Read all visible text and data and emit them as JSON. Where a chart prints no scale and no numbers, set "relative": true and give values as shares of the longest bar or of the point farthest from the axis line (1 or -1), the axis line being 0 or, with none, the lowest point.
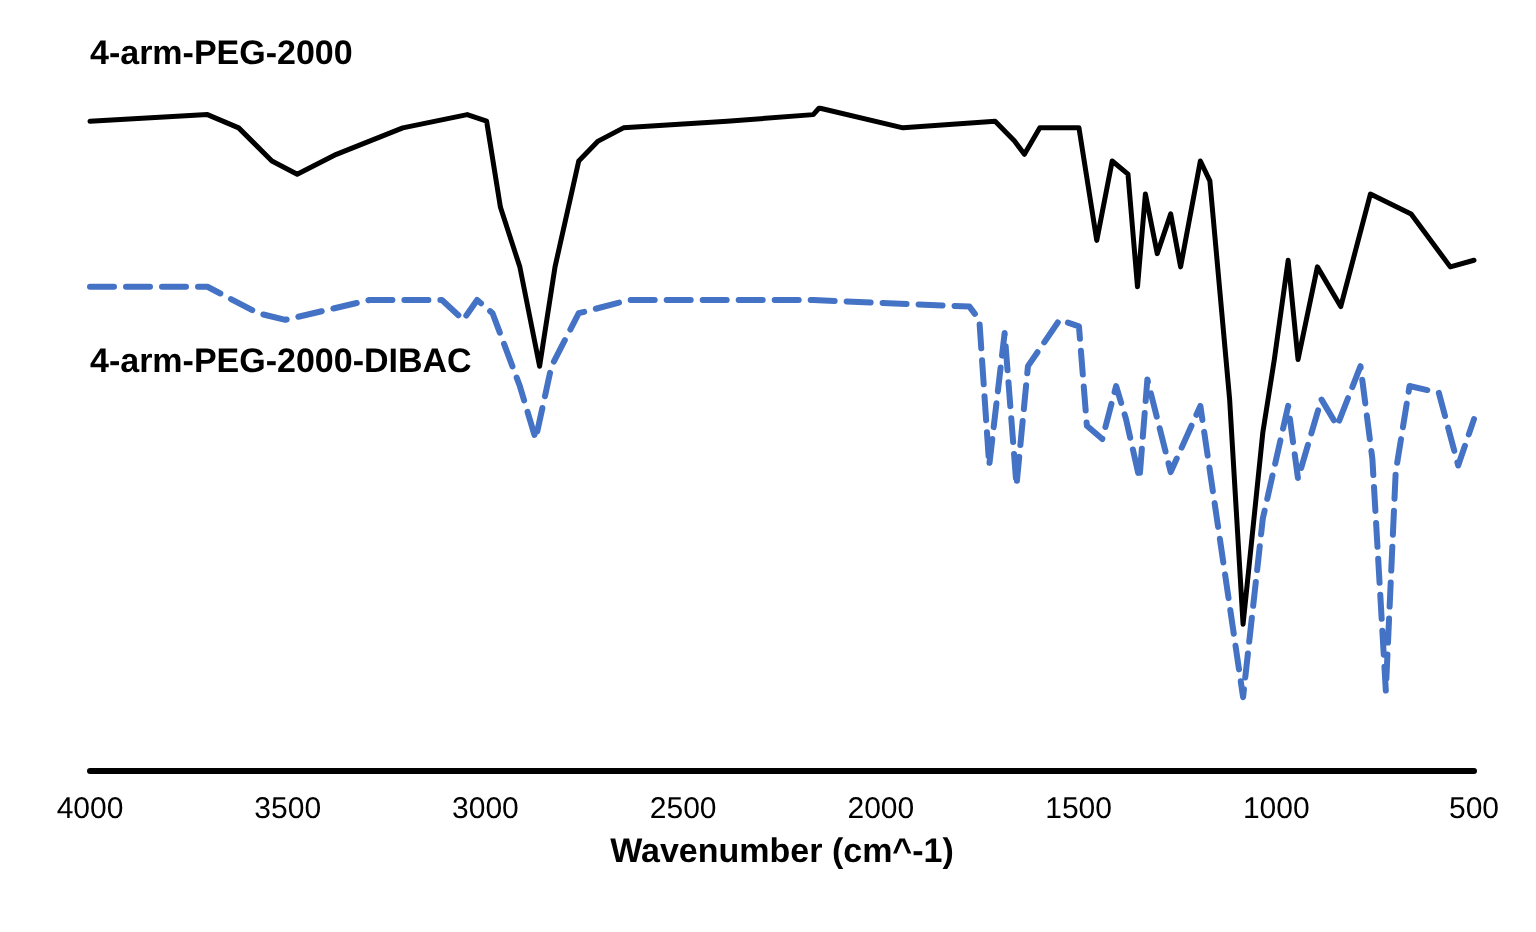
{
  "chart_data": {
    "type": "line",
    "relative": true,
    "xlabel": "Wavenumber (cm^-1)",
    "xlim": [
      4000,
      500
    ],
    "xticks": [
      4000,
      3500,
      3000,
      2500,
      2000,
      1500,
      1000,
      500
    ],
    "grid": false,
    "legend": false,
    "tick_labels": "x",
    "marker": "none",
    "series": [
      {
        "name": "4-arm-PEG-2000",
        "color": "#000000",
        "line_style": "solid",
        "x": [
          4000,
          3703,
          3624,
          3540,
          3476,
          3377,
          3209,
          3046,
          2997,
          2962,
          2913,
          2863,
          2824,
          2764,
          2715,
          2651,
          2389,
          2171,
          2156,
          1944,
          1711,
          1662,
          1637,
          1598,
          1499,
          1454,
          1415,
          1375,
          1351,
          1331,
          1301,
          1267,
          1242,
          1192,
          1168,
          1118,
          1084,
          1034,
          1005,
          970,
          945,
          896,
          837,
          762,
          659,
          560,
          500
        ],
        "values": [
          0.98,
          0.99,
          0.97,
          0.92,
          0.9,
          0.93,
          0.97,
          0.99,
          0.98,
          0.85,
          0.76,
          0.61,
          0.76,
          0.92,
          0.95,
          0.97,
          0.98,
          0.99,
          1.0,
          0.97,
          0.98,
          0.95,
          0.93,
          0.97,
          0.97,
          0.8,
          0.92,
          0.9,
          0.73,
          0.87,
          0.78,
          0.84,
          0.76,
          0.92,
          0.89,
          0.56,
          0.22,
          0.51,
          0.62,
          0.77,
          0.62,
          0.76,
          0.7,
          0.87,
          0.84,
          0.76,
          0.77
        ]
      },
      {
        "name": "4-arm-PEG-2000-DIBAC",
        "color": "#4472c4",
        "line_style": "dashed",
        "x": [
          4000,
          3703,
          3575,
          3506,
          3293,
          3110,
          3056,
          3021,
          2982,
          2913,
          2873,
          2833,
          2764,
          2636,
          2339,
          2171,
          1776,
          1751,
          1726,
          1687,
          1657,
          1628,
          1548,
          1499,
          1479,
          1440,
          1405,
          1380,
          1346,
          1326,
          1267,
          1192,
          1084,
          1034,
          970,
          945,
          886,
          846,
          787,
          757,
          723,
          698,
          663,
          589,
          540,
          500
        ],
        "values": [
          0.73,
          0.73,
          0.69,
          0.68,
          0.71,
          0.71,
          0.68,
          0.71,
          0.69,
          0.58,
          0.5,
          0.61,
          0.69,
          0.71,
          0.71,
          0.71,
          0.7,
          0.68,
          0.46,
          0.66,
          0.43,
          0.61,
          0.68,
          0.67,
          0.52,
          0.5,
          0.58,
          0.53,
          0.44,
          0.59,
          0.45,
          0.55,
          0.11,
          0.38,
          0.55,
          0.44,
          0.56,
          0.52,
          0.61,
          0.47,
          0.12,
          0.45,
          0.58,
          0.57,
          0.46,
          0.53
        ]
      }
    ]
  }
}
